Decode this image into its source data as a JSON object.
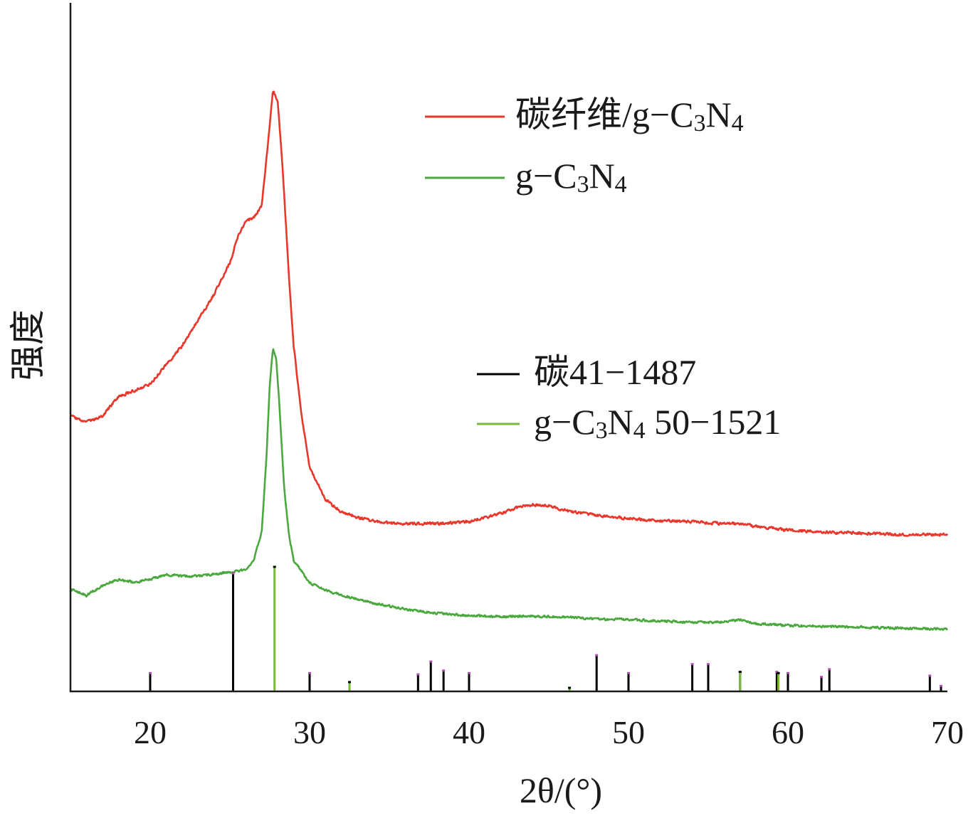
{
  "chart_data": {
    "type": "line",
    "title": "",
    "xlabel": "2θ/(°)",
    "ylabel": "强度",
    "xlim": [
      15,
      70
    ],
    "x_ticks": [
      20,
      30,
      40,
      50,
      60,
      70
    ],
    "y_ticks_shown": false,
    "grid": false,
    "y_values_note": "",
    "legend_curves": {
      "placement": "top-right",
      "entries": [
        {
          "series": "carbon_fiber_gcn",
          "base": "碳纤维/g−C",
          "sub1": "3",
          "mid": "N",
          "sub2": "4",
          "tail": ""
        },
        {
          "series": "gcn",
          "base": "g−C",
          "sub1": "3",
          "mid": "N",
          "sub2": "4",
          "tail": ""
        }
      ]
    },
    "legend_refs": {
      "placement": "right",
      "entries": [
        {
          "series": "ref_carbon",
          "base": "碳41−1487",
          "sub1": "",
          "mid": "",
          "sub2": "",
          "tail": ""
        },
        {
          "series": "ref_gcn",
          "base": "g−C",
          "sub1": "3",
          "mid": "N",
          "sub2": "4",
          "tail": " 50−1521"
        }
      ]
    },
    "series": [
      {
        "id": "carbon_fiber_gcn",
        "kind": "curve",
        "color": "#e8372b",
        "noise": 2.6,
        "points": [
          [
            15,
            0.43
          ],
          [
            16,
            0.42
          ],
          [
            17,
            0.43
          ],
          [
            18,
            0.46
          ],
          [
            19,
            0.47
          ],
          [
            20,
            0.48
          ],
          [
            21,
            0.51
          ],
          [
            22,
            0.54
          ],
          [
            23,
            0.58
          ],
          [
            24,
            0.62
          ],
          [
            25,
            0.67
          ],
          [
            25.5,
            0.71
          ],
          [
            26,
            0.735
          ],
          [
            26.5,
            0.74
          ],
          [
            27,
            0.76
          ],
          [
            27.4,
            0.86
          ],
          [
            27.7,
            0.94
          ],
          [
            28,
            0.92
          ],
          [
            28.3,
            0.82
          ],
          [
            28.7,
            0.65
          ],
          [
            29,
            0.54
          ],
          [
            29.5,
            0.43
          ],
          [
            30,
            0.35
          ],
          [
            31,
            0.3
          ],
          [
            32,
            0.28
          ],
          [
            33,
            0.272
          ],
          [
            34,
            0.266
          ],
          [
            35,
            0.263
          ],
          [
            36,
            0.262
          ],
          [
            38,
            0.262
          ],
          [
            40,
            0.265
          ],
          [
            42,
            0.278
          ],
          [
            43,
            0.287
          ],
          [
            44,
            0.292
          ],
          [
            45,
            0.29
          ],
          [
            46,
            0.283
          ],
          [
            48,
            0.275
          ],
          [
            50,
            0.27
          ],
          [
            52,
            0.267
          ],
          [
            54,
            0.265
          ],
          [
            56,
            0.262
          ],
          [
            57,
            0.262
          ],
          [
            58,
            0.258
          ],
          [
            60,
            0.252
          ],
          [
            62,
            0.249
          ],
          [
            65,
            0.247
          ],
          [
            67,
            0.245
          ],
          [
            70,
            0.245
          ]
        ]
      },
      {
        "id": "gcn",
        "kind": "curve",
        "color": "#4aa83e",
        "noise": 2.2,
        "points": [
          [
            15,
            0.16
          ],
          [
            16,
            0.15
          ],
          [
            17,
            0.165
          ],
          [
            18,
            0.175
          ],
          [
            19,
            0.17
          ],
          [
            20,
            0.175
          ],
          [
            21,
            0.182
          ],
          [
            22,
            0.18
          ],
          [
            23,
            0.18
          ],
          [
            24,
            0.183
          ],
          [
            25,
            0.186
          ],
          [
            26,
            0.19
          ],
          [
            26.5,
            0.205
          ],
          [
            27,
            0.25
          ],
          [
            27.3,
            0.37
          ],
          [
            27.5,
            0.48
          ],
          [
            27.7,
            0.535
          ],
          [
            27.9,
            0.52
          ],
          [
            28.1,
            0.45
          ],
          [
            28.4,
            0.32
          ],
          [
            28.7,
            0.245
          ],
          [
            29,
            0.205
          ],
          [
            30,
            0.17
          ],
          [
            31,
            0.158
          ],
          [
            32,
            0.15
          ],
          [
            34,
            0.138
          ],
          [
            36,
            0.128
          ],
          [
            38,
            0.122
          ],
          [
            40,
            0.118
          ],
          [
            42,
            0.117
          ],
          [
            44,
            0.117
          ],
          [
            46,
            0.116
          ],
          [
            48,
            0.113
          ],
          [
            50,
            0.112
          ],
          [
            52,
            0.11
          ],
          [
            54,
            0.108
          ],
          [
            56,
            0.108
          ],
          [
            57,
            0.112
          ],
          [
            58,
            0.106
          ],
          [
            60,
            0.103
          ],
          [
            65,
            0.1
          ],
          [
            70,
            0.097
          ]
        ]
      },
      {
        "id": "ref_carbon",
        "kind": "sticks",
        "color": "#000000",
        "tip": "#b24fb8",
        "peaks": [
          [
            20.0,
            0.028
          ],
          [
            25.2,
            0.184
          ],
          [
            30.0,
            0.028
          ],
          [
            36.8,
            0.026
          ],
          [
            37.6,
            0.046
          ],
          [
            38.4,
            0.032
          ],
          [
            40.0,
            0.028
          ],
          [
            48.0,
            0.056
          ],
          [
            50.0,
            0.028
          ],
          [
            54.0,
            0.042
          ],
          [
            55.0,
            0.042
          ],
          [
            57.0,
            0.03
          ],
          [
            59.3,
            0.03
          ],
          [
            60.0,
            0.028
          ],
          [
            62.1,
            0.022
          ],
          [
            62.6,
            0.034
          ],
          [
            68.9,
            0.024
          ],
          [
            69.6,
            0.008
          ]
        ]
      },
      {
        "id": "ref_gcn",
        "kind": "sticks",
        "color": "#7ab93b",
        "tip": "#000000",
        "peaks": [
          [
            27.8,
            0.194
          ],
          [
            32.5,
            0.014
          ],
          [
            46.3,
            0.005
          ],
          [
            57.0,
            0.03
          ],
          [
            59.4,
            0.028
          ]
        ]
      }
    ]
  }
}
